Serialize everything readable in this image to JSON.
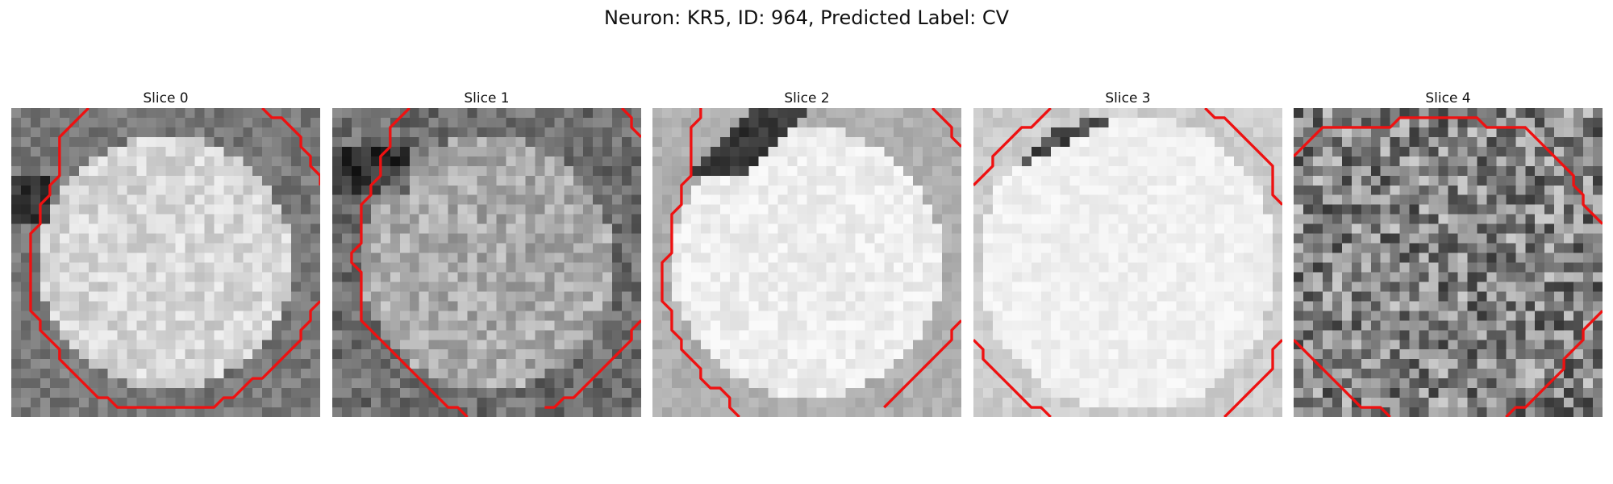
{
  "figure": {
    "title": "Neuron: KR5, ID: 964, Predicted Label: CV"
  },
  "panels": [
    {
      "title": "Slice 0",
      "kind": "bright-disk",
      "seed": 11,
      "contour_color": "#ee1111"
    },
    {
      "title": "Slice 1",
      "kind": "mid-disk",
      "seed": 23,
      "contour_color": "#ee1111"
    },
    {
      "title": "Slice 2",
      "kind": "very-bright",
      "seed": 37,
      "contour_color": "#ee1111"
    },
    {
      "title": "Slice 3",
      "kind": "white",
      "seed": 41,
      "contour_color": "#ee1111"
    },
    {
      "title": "Slice 4",
      "kind": "noisy",
      "seed": 53,
      "contour_color": "#ee1111"
    }
  ]
}
